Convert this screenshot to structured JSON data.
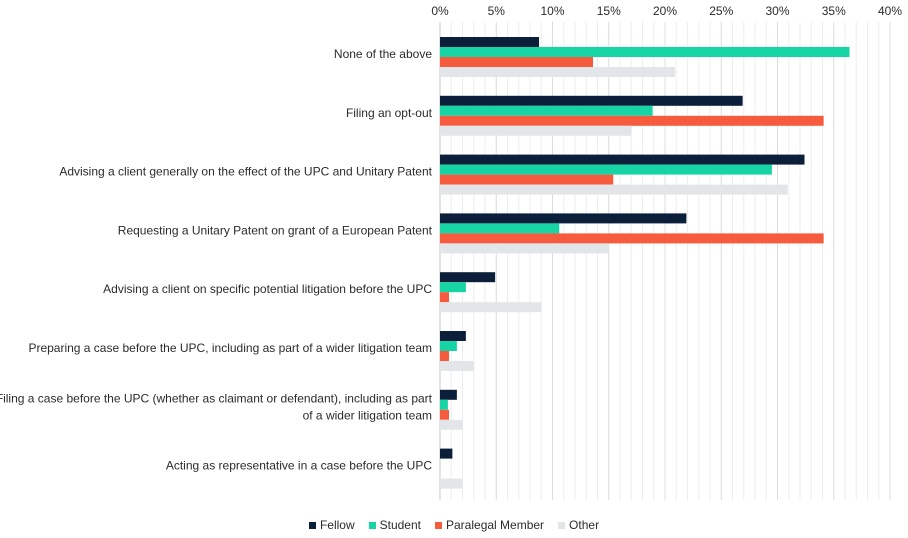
{
  "chart_data": {
    "type": "bar",
    "orientation": "horizontal",
    "title": "",
    "xlabel": "",
    "ylabel": "",
    "xlim": [
      0,
      40
    ],
    "x_tick_labels": [
      "0%",
      "5%",
      "10%",
      "15%",
      "20%",
      "25%",
      "30%",
      "35%",
      "40%"
    ],
    "x_ticks": [
      0,
      5,
      10,
      15,
      20,
      25,
      30,
      35,
      40
    ],
    "grid": true,
    "legend_position": "bottom-center",
    "categories": [
      [
        "None of the above"
      ],
      [
        "Filing an opt-out"
      ],
      [
        "Advising a client generally on the effect of the UPC and Unitary Patent"
      ],
      [
        "Requesting a Unitary Patent on grant of a European Patent"
      ],
      [
        "Advising a client on specific potential litigation before the UPC"
      ],
      [
        "Preparing a case before the UPC, including as part of a wider litigation team"
      ],
      [
        "Filing a case before the UPC (whether as claimant or defendant), including as part",
        "of a wider litigation team"
      ],
      [
        "Acting as representative in a case before the UPC"
      ]
    ],
    "series": [
      {
        "name": "Fellow",
        "color": "#0b1f3a",
        "values": [
          8.8,
          26.9,
          32.4,
          21.9,
          4.9,
          2.3,
          1.5,
          1.1
        ]
      },
      {
        "name": "Student",
        "color": "#17d4a4",
        "values": [
          36.4,
          18.9,
          29.5,
          10.6,
          2.3,
          1.5,
          0.7,
          0
        ]
      },
      {
        "name": "Paralegal Member",
        "color": "#f75b3e",
        "values": [
          13.6,
          34.1,
          15.4,
          34.1,
          0.8,
          0.8,
          0.8,
          0
        ]
      },
      {
        "name": "Other",
        "color": "#e2e6e8",
        "values": [
          20.9,
          17.0,
          30.9,
          15.0,
          9.0,
          3.0,
          2.0,
          2.0
        ]
      }
    ]
  }
}
